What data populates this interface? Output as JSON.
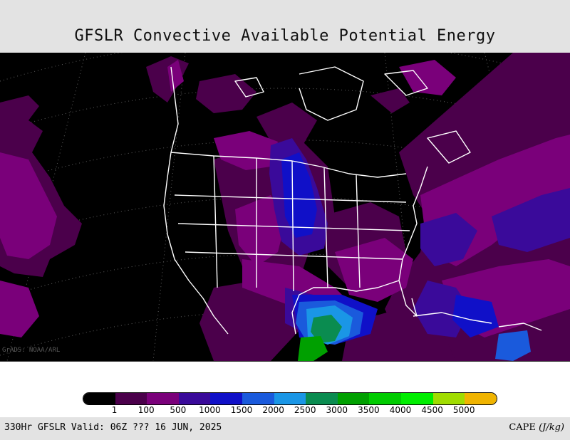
{
  "title": "GFSLR Convective Available Potential Energy",
  "watermark": "GrADS: NOAA/ARL",
  "footer": {
    "valid_text": "330Hr GFSLR Valid: 06Z ??? 16 JUN, 2025",
    "variable": "CAPE",
    "units": "(J/kg)"
  },
  "legend": {
    "colors": [
      "#000000",
      "#4b004b",
      "#7a007a",
      "#3a0a9a",
      "#1010c8",
      "#1a5adc",
      "#1a96e6",
      "#0a8c50",
      "#00a000",
      "#00cc00",
      "#00ee00",
      "#a0dc00",
      "#f0b400"
    ],
    "ticks": [
      "1",
      "100",
      "500",
      "1000",
      "1500",
      "2000",
      "2500",
      "3000",
      "3500",
      "4000",
      "4500",
      "5000"
    ]
  },
  "map": {
    "colors": {
      "background": "#000000",
      "dark_purple": "#4b004b",
      "purple": "#7a007a",
      "indigo": "#3a0a9a",
      "blue": "#1010c8",
      "mid_blue": "#1a5adc",
      "light_blue": "#1a96e6",
      "teal": "#0a8c50",
      "green": "#00a000",
      "boundary": "#ffffff"
    }
  }
}
